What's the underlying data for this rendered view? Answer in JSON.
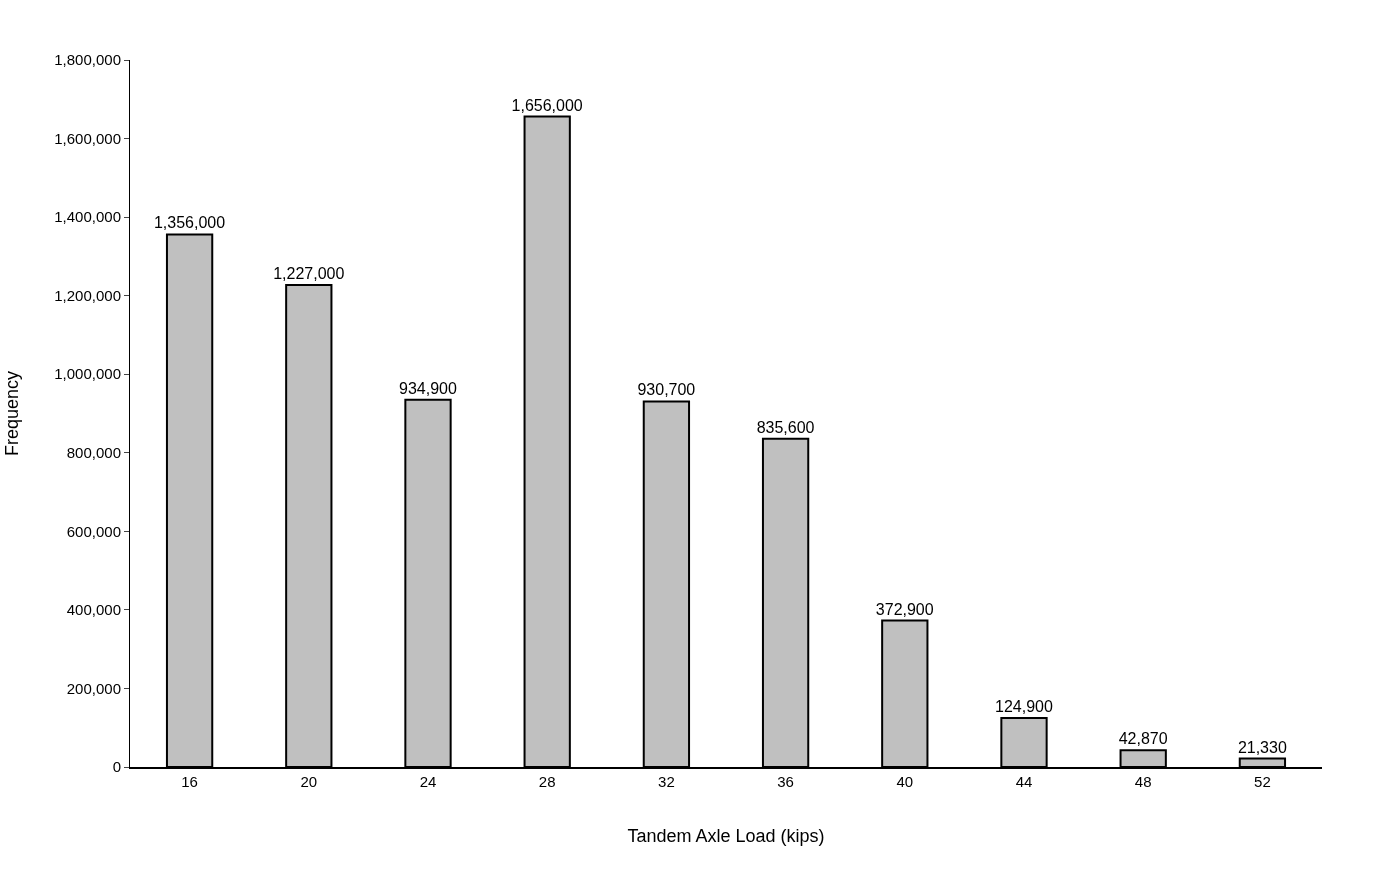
{
  "chart_data": {
    "type": "bar",
    "xlabel": "Tandem Axle Load (kips)",
    "ylabel": "Frequency",
    "categories": [
      "16",
      "20",
      "24",
      "28",
      "32",
      "36",
      "40",
      "44",
      "48",
      "52"
    ],
    "values": [
      1356000,
      1227000,
      934900,
      1656000,
      930700,
      835600,
      372900,
      124900,
      42870,
      21330
    ],
    "value_labels": [
      "1,356,000",
      "1,227,000",
      "934,900",
      "1,656,000",
      "930,700",
      "835,600",
      "372,900",
      "124,900",
      "42,870",
      "21,330"
    ],
    "color": "#c0c0c0",
    "ylim": [
      0,
      1800000
    ],
    "yticks": [
      {
        "value": 0,
        "label": "0"
      },
      {
        "value": 200000,
        "label": "200,000"
      },
      {
        "value": 400000,
        "label": "400,000"
      },
      {
        "value": 600000,
        "label": "600,000"
      },
      {
        "value": 800000,
        "label": "800,000"
      },
      {
        "value": 1000000,
        "label": "1,000,000"
      },
      {
        "value": 1200000,
        "label": "1,200,000"
      },
      {
        "value": 1400000,
        "label": "1,400,000"
      },
      {
        "value": 1600000,
        "label": "1,600,000"
      },
      {
        "value": 1800000,
        "label": "1,800,000"
      }
    ],
    "legend": false
  }
}
